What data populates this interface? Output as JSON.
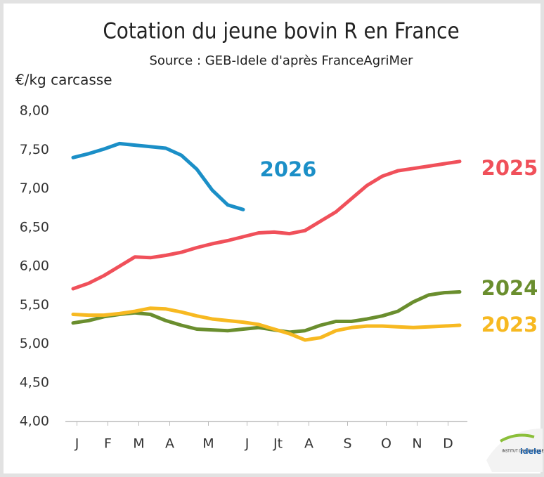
{
  "chart_data": {
    "type": "line",
    "title": "Cotation du jeune bovin R en France",
    "subtitle": "Source : GEB-Idele d'après FranceAgriMer",
    "y_label": "€/kg carcasse",
    "logo": {
      "small": "INSTITUT DE L'ÉLEVAGE",
      "name": "idele"
    },
    "x": [
      1,
      3,
      5,
      7,
      9,
      11,
      13,
      15,
      17,
      19,
      21,
      23,
      25,
      27,
      29,
      31,
      33,
      35,
      37,
      39,
      41,
      43,
      45,
      47,
      49,
      51
    ],
    "xlim": [
      0,
      52
    ],
    "xticks": [
      {
        "value": 1.5,
        "label": "J"
      },
      {
        "value": 5.5,
        "label": "F"
      },
      {
        "value": 9.5,
        "label": "M"
      },
      {
        "value": 13.5,
        "label": "A"
      },
      {
        "value": 18.5,
        "label": "M"
      },
      {
        "value": 23.5,
        "label": "J"
      },
      {
        "value": 27.5,
        "label": "Jt"
      },
      {
        "value": 31.5,
        "label": "A"
      },
      {
        "value": 36.5,
        "label": "S"
      },
      {
        "value": 41.5,
        "label": "O"
      },
      {
        "value": 45.5,
        "label": "N"
      },
      {
        "value": 49.5,
        "label": "D"
      }
    ],
    "ylim": [
      4,
      8
    ],
    "yticks": [
      {
        "value": 4,
        "label": "4,00"
      },
      {
        "value": 4.5,
        "label": "4,50"
      },
      {
        "value": 5,
        "label": "5,00"
      },
      {
        "value": 5.5,
        "label": "5,50"
      },
      {
        "value": 6,
        "label": "6,00"
      },
      {
        "value": 6.5,
        "label": "6,50"
      },
      {
        "value": 7,
        "label": "7,00"
      },
      {
        "value": 7.5,
        "label": "7,50"
      },
      {
        "value": 8,
        "label": "8,00"
      }
    ],
    "grid": false,
    "series": [
      {
        "name": "2026",
        "color": "#1b8fc7",
        "values": [
          7.4,
          7.45,
          7.51,
          7.58,
          7.56,
          7.54,
          7.52,
          7.43,
          7.25,
          6.98,
          6.79,
          6.73,
          null,
          null,
          null,
          null,
          null,
          null,
          null,
          null,
          null,
          null,
          null,
          null,
          null,
          null
        ]
      },
      {
        "name": "2025",
        "color": "#f0505a",
        "values": [
          5.71,
          5.78,
          5.88,
          6.0,
          6.12,
          6.11,
          6.14,
          6.18,
          6.24,
          6.29,
          6.33,
          6.38,
          6.43,
          6.44,
          6.42,
          6.46,
          6.58,
          6.7,
          6.87,
          7.04,
          7.16,
          7.23,
          7.26,
          7.29,
          7.32,
          7.35
        ]
      },
      {
        "name": "2024",
        "color": "#6a8e2e",
        "values": [
          5.27,
          5.3,
          5.35,
          5.38,
          5.4,
          5.38,
          5.3,
          5.24,
          5.19,
          5.18,
          5.17,
          5.19,
          5.21,
          5.18,
          5.15,
          5.17,
          5.24,
          5.29,
          5.29,
          5.32,
          5.36,
          5.42,
          5.54,
          5.63,
          5.66,
          5.67
        ]
      },
      {
        "name": "2023",
        "color": "#f7b921",
        "values": [
          5.38,
          5.37,
          5.37,
          5.39,
          5.42,
          5.46,
          5.45,
          5.41,
          5.36,
          5.32,
          5.3,
          5.28,
          5.25,
          5.19,
          5.13,
          5.05,
          5.08,
          5.17,
          5.21,
          5.23,
          5.23,
          5.22,
          5.21,
          5.22,
          5.23,
          5.24
        ]
      }
    ]
  }
}
